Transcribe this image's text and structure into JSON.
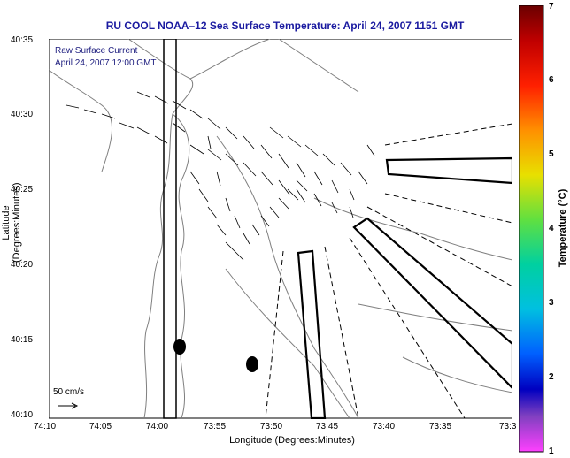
{
  "title": "RU COOL  NOAA–12  Sea Surface Temperature:  April 24, 2007 1151 GMT",
  "legend": {
    "line1": "Raw Surface Current",
    "line2": "April 24, 2007 12:00 GMT"
  },
  "scale_label": "50 cm/s",
  "axis": {
    "xlabel": "Longitude (Degrees:Minutes)",
    "ylabel": "Latitude (Degrees:Minutes)",
    "xticks": [
      "74:10",
      "74:05",
      "74:00",
      "73:55",
      "73:50",
      "73:45",
      "73:40",
      "73:35",
      "73:3"
    ],
    "yticks": [
      "40:35",
      "40:30",
      "40:25",
      "40:20",
      "40:15",
      "40:10"
    ]
  },
  "colorbar": {
    "label": "Temperature (°C)",
    "ticks": [
      "7",
      "6",
      "5",
      "4",
      "3",
      "2",
      "1"
    ]
  },
  "colors": {
    "title": "#1a1aa0",
    "land": "#808080",
    "vectors": "#000000"
  }
}
